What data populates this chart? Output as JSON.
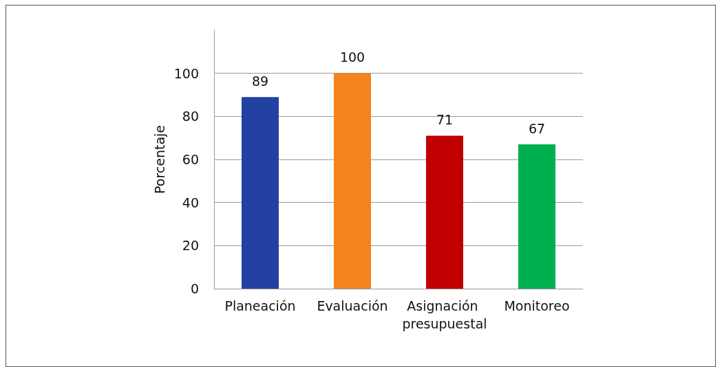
{
  "chart_data": {
    "type": "bar",
    "ylabel": "Porcentaje",
    "categories": [
      "Planeación",
      "Evaluación",
      "Asignación presupuestal",
      "Monitoreo"
    ],
    "values": [
      89,
      100,
      71,
      67
    ],
    "colors": [
      "#2340a3",
      "#f5821f",
      "#c00000",
      "#00b050"
    ],
    "ylim": [
      0,
      120
    ],
    "yticks": [
      0,
      20,
      40,
      60,
      80,
      100
    ],
    "grid": "y",
    "data_labels": true
  }
}
